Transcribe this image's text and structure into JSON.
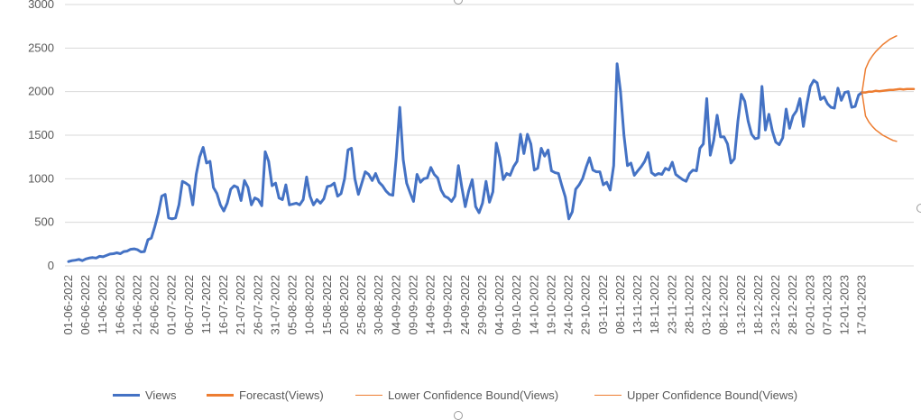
{
  "chart_data": {
    "type": "line",
    "title": "",
    "xlabel": "",
    "ylabel": "",
    "ylim": [
      0,
      3000
    ],
    "yticks": [
      "0",
      "500",
      "1000",
      "1500",
      "2000",
      "2500",
      "3000"
    ],
    "gridlines": true,
    "legend_position": "bottom",
    "x_tick_labels": [
      "01-06-2022",
      "06-06-2022",
      "11-06-2022",
      "16-06-2022",
      "21-06-2022",
      "26-06-2022",
      "01-07-2022",
      "06-07-2022",
      "11-07-2022",
      "16-07-2022",
      "21-07-2022",
      "26-07-2022",
      "31-07-2022",
      "05-08-2022",
      "10-08-2022",
      "15-08-2022",
      "20-08-2022",
      "25-08-2022",
      "30-08-2022",
      "04-09-2022",
      "09-09-2022",
      "14-09-2022",
      "19-09-2022",
      "24-09-2022",
      "29-09-2022",
      "04-10-2022",
      "09-10-2022",
      "14-10-2022",
      "19-10-2022",
      "24-10-2022",
      "29-10-2022",
      "03-11-2022",
      "08-11-2022",
      "13-11-2022",
      "18-11-2022",
      "23-11-2022",
      "28-11-2022",
      "03-12-2022",
      "08-12-2022",
      "13-12-2022",
      "18-12-2022",
      "23-12-2022",
      "28-12-2022",
      "02-01-2023",
      "07-01-2023",
      "12-01-2023",
      "17-01-2023"
    ],
    "start_date": "01-06-2022",
    "series": [
      {
        "name": "Views",
        "color": "#4472C4",
        "values": [
          50,
          60,
          65,
          75,
          60,
          80,
          90,
          95,
          90,
          110,
          105,
          120,
          135,
          140,
          150,
          140,
          165,
          170,
          190,
          195,
          185,
          160,
          165,
          300,
          320,
          450,
          600,
          800,
          820,
          550,
          540,
          550,
          700,
          970,
          950,
          920,
          700,
          1050,
          1250,
          1360,
          1180,
          1200,
          900,
          830,
          700,
          630,
          720,
          880,
          920,
          900,
          750,
          980,
          900,
          700,
          780,
          760,
          690,
          1310,
          1200,
          920,
          950,
          780,
          760,
          930,
          700,
          710,
          720,
          700,
          760,
          1020,
          800,
          700,
          760,
          720,
          770,
          910,
          920,
          950,
          800,
          830,
          1000,
          1330,
          1350,
          1000,
          820,
          950,
          1080,
          1050,
          980,
          1060,
          960,
          920,
          860,
          820,
          810,
          1250,
          1820,
          1220,
          950,
          840,
          740,
          1050,
          960,
          1000,
          1010,
          1130,
          1050,
          1010,
          870,
          800,
          780,
          740,
          800,
          1150,
          900,
          680,
          860,
          990,
          680,
          610,
          720,
          970,
          730,
          850,
          1410,
          1240,
          990,
          1060,
          1040,
          1140,
          1200,
          1510,
          1290,
          1510,
          1400,
          1100,
          1120,
          1350,
          1260,
          1330,
          1090,
          1070,
          1060,
          920,
          790,
          540,
          620,
          880,
          930,
          1000,
          1130,
          1240,
          1100,
          1080,
          1080,
          930,
          960,
          870,
          1150,
          2320,
          2000,
          1500,
          1150,
          1180,
          1040,
          1090,
          1140,
          1200,
          1300,
          1070,
          1040,
          1060,
          1050,
          1120,
          1100,
          1190,
          1050,
          1020,
          990,
          970,
          1060,
          1100,
          1090,
          1350,
          1400,
          1920,
          1270,
          1440,
          1730,
          1480,
          1480,
          1400,
          1180,
          1230,
          1660,
          1970,
          1890,
          1660,
          1510,
          1460,
          1470,
          2060,
          1560,
          1740,
          1550,
          1420,
          1390,
          1470,
          1800,
          1580,
          1720,
          1780,
          1920,
          1600,
          1850,
          2060,
          2130,
          2100,
          1910,
          1940,
          1860,
          1820,
          1810,
          2040,
          1900,
          1990,
          2000,
          1820,
          1830,
          1960,
          1990
        ]
      },
      {
        "name": "Forecast(Views)",
        "color": "#ED7D31",
        "values": [
          1990,
          1990,
          2000,
          2000,
          2010,
          2005,
          2010,
          2015,
          2020,
          2020,
          2025,
          2030,
          2025,
          2030,
          2030,
          2030
        ]
      },
      {
        "name": "Lower Confidence Bound(Views)",
        "color": "#ED7D31",
        "values": [
          1990,
          1720,
          1650,
          1600,
          1560,
          1530,
          1500,
          1480,
          1460,
          1440,
          1430
        ]
      },
      {
        "name": "Upper Confidence Bound(Views)",
        "color": "#ED7D31",
        "values": [
          1990,
          2260,
          2350,
          2410,
          2460,
          2500,
          2540,
          2570,
          2600,
          2620,
          2640
        ]
      }
    ]
  }
}
